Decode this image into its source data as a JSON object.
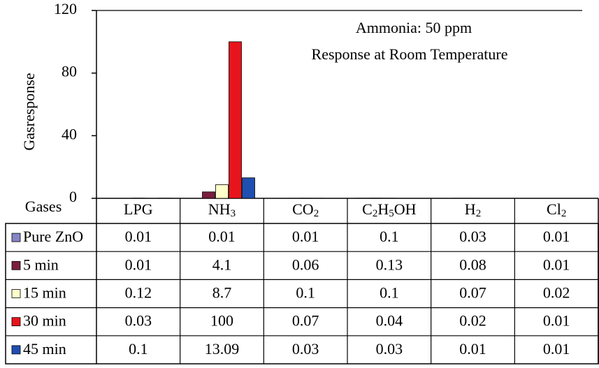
{
  "chart_data": {
    "type": "bar",
    "title": "Ammonia: 50 ppm",
    "subtitle": "Response at Room Temperature",
    "y_label": "Gasresponse",
    "table_header": "Gases",
    "categories": [
      "LPG",
      "NH3",
      "CO2",
      "C2H5OH",
      "H2",
      "Cl2"
    ],
    "ylim": [
      0,
      120
    ],
    "yticks": [
      0,
      40,
      80,
      120
    ],
    "series": [
      {
        "name": "Pure ZnO",
        "color": "#8585c4",
        "values": [
          0.01,
          0.01,
          0.01,
          0.1,
          0.03,
          0.01
        ]
      },
      {
        "name": "5 min",
        "color": "#7a1e3e",
        "values": [
          0.01,
          4.1,
          0.06,
          0.13,
          0.08,
          0.01
        ]
      },
      {
        "name": "15 min",
        "color": "#ffffcc",
        "values": [
          0.12,
          8.7,
          0.1,
          0.1,
          0.07,
          0.02
        ]
      },
      {
        "name": "30 min",
        "color": "#e8141c",
        "values": [
          0.03,
          100,
          0.07,
          0.04,
          0.02,
          0.01
        ]
      },
      {
        "name": "45 min",
        "color": "#1f4fb0",
        "values": [
          0.1,
          13.09,
          0.03,
          0.03,
          0.01,
          0.01
        ]
      }
    ]
  }
}
